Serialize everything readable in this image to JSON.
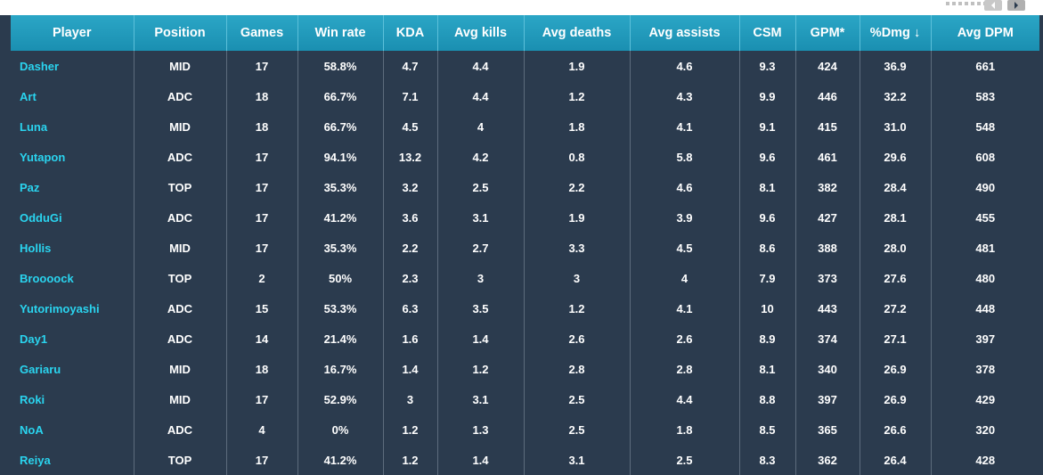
{
  "columns": [
    "Player",
    "Position",
    "Games",
    "Win rate",
    "KDA",
    "Avg kills",
    "Avg deaths",
    "Avg assists",
    "CSM",
    "GPM*",
    "%Dmg ↓",
    "Avg DPM"
  ],
  "rows": [
    [
      "Dasher",
      "MID",
      "17",
      "58.8%",
      "4.7",
      "4.4",
      "1.9",
      "4.6",
      "9.3",
      "424",
      "36.9",
      "661"
    ],
    [
      "Art",
      "ADC",
      "18",
      "66.7%",
      "7.1",
      "4.4",
      "1.2",
      "4.3",
      "9.9",
      "446",
      "32.2",
      "583"
    ],
    [
      "Luna",
      "MID",
      "18",
      "66.7%",
      "4.5",
      "4",
      "1.8",
      "4.1",
      "9.1",
      "415",
      "31.0",
      "548"
    ],
    [
      "Yutapon",
      "ADC",
      "17",
      "94.1%",
      "13.2",
      "4.2",
      "0.8",
      "5.8",
      "9.6",
      "461",
      "29.6",
      "608"
    ],
    [
      "Paz",
      "TOP",
      "17",
      "35.3%",
      "3.2",
      "2.5",
      "2.2",
      "4.6",
      "8.1",
      "382",
      "28.4",
      "490"
    ],
    [
      "OdduGi",
      "ADC",
      "17",
      "41.2%",
      "3.6",
      "3.1",
      "1.9",
      "3.9",
      "9.6",
      "427",
      "28.1",
      "455"
    ],
    [
      "Hollis",
      "MID",
      "17",
      "35.3%",
      "2.2",
      "2.7",
      "3.3",
      "4.5",
      "8.6",
      "388",
      "28.0",
      "481"
    ],
    [
      "Broooock",
      "TOP",
      "2",
      "50%",
      "2.3",
      "3",
      "3",
      "4",
      "7.9",
      "373",
      "27.6",
      "480"
    ],
    [
      "Yutorimoyashi",
      "ADC",
      "15",
      "53.3%",
      "6.3",
      "3.5",
      "1.2",
      "4.1",
      "10",
      "443",
      "27.2",
      "448"
    ],
    [
      "Day1",
      "ADC",
      "14",
      "21.4%",
      "1.6",
      "1.4",
      "2.6",
      "2.6",
      "8.9",
      "374",
      "27.1",
      "397"
    ],
    [
      "Gariaru",
      "MID",
      "18",
      "16.7%",
      "1.4",
      "1.2",
      "2.8",
      "2.8",
      "8.1",
      "340",
      "26.9",
      "378"
    ],
    [
      "Roki",
      "MID",
      "17",
      "52.9%",
      "3",
      "3.1",
      "2.5",
      "4.4",
      "8.8",
      "397",
      "26.9",
      "429"
    ],
    [
      "NoA",
      "ADC",
      "4",
      "0%",
      "1.2",
      "1.3",
      "2.5",
      "1.8",
      "8.5",
      "365",
      "26.6",
      "320"
    ],
    [
      "Reiya",
      "TOP",
      "17",
      "41.2%",
      "1.2",
      "1.4",
      "3.1",
      "2.5",
      "8.3",
      "362",
      "26.4",
      "428"
    ]
  ],
  "pager": {
    "prev_icon": "chevron-left-icon",
    "next_icon": "chevron-right-icon"
  },
  "colors": {
    "header_bg": "#1a8fb1",
    "body_bg": "#2b3b4e",
    "player_link": "#2ad4ef"
  }
}
